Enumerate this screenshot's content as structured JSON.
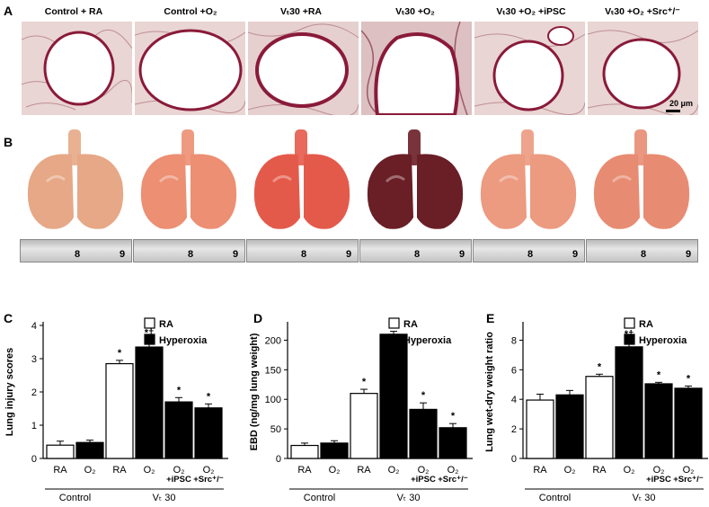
{
  "figure": {
    "panel_labels": [
      "A",
      "B",
      "C",
      "D",
      "E"
    ],
    "column_titles": [
      "Control + RA",
      "Control +O₂",
      "Vₜ30 +RA",
      "Vₜ30  +O₂",
      "Vₜ30  +O₂ +iPSC",
      "Vₜ30  +O₂ +Src⁺/⁻"
    ],
    "scale_bar_label": "20 μm",
    "ruler_numbers": [
      "8",
      "9"
    ],
    "colors": {
      "tissue": "#c9a4a4",
      "wall": "#8a1a3a",
      "rule_bg": "#d2d2d2",
      "bar_black": "#000000",
      "bar_white": "#ffffff"
    },
    "lung_colors": [
      "#e6a886",
      "#ec8f73",
      "#e45a4a",
      "#6a1e26",
      "#ec9a80",
      "#e78c72"
    ]
  },
  "chart_data": [
    {
      "type": "bar",
      "panel": "C",
      "ylabel": "Lung injury scores",
      "ylim": [
        0,
        4
      ],
      "yticks": [
        "0",
        "1",
        "2",
        "3",
        "4"
      ],
      "categories": [
        "RA",
        "O₂",
        "RA",
        "O₂",
        "O₂\n+iPSC",
        "O₂\n+Src⁺/⁻"
      ],
      "values": [
        0.4,
        0.48,
        2.85,
        3.35,
        1.7,
        1.52
      ],
      "errors": [
        0.12,
        0.07,
        0.1,
        0.2,
        0.13,
        0.12
      ],
      "fills": [
        "white",
        "black",
        "white",
        "black",
        "black",
        "black"
      ],
      "annotations": [
        "",
        "",
        "*",
        "*†",
        "*",
        "*"
      ],
      "legend": [
        {
          "label": "RA",
          "fill": "white"
        },
        {
          "label": "Hyperoxia",
          "fill": "black"
        }
      ],
      "groups": [
        {
          "label": "Control",
          "span": [
            0,
            1
          ]
        },
        {
          "label": "Vₜ 30",
          "span": [
            2,
            5
          ]
        }
      ]
    },
    {
      "type": "bar",
      "panel": "D",
      "ylabel": "EBD (ng/mg lung weight)",
      "ylim": [
        0,
        225
      ],
      "yticks": [
        "0",
        "50",
        "100",
        "150",
        "200"
      ],
      "categories": [
        "RA",
        "O₂",
        "RA",
        "O₂",
        "O₂\n+iPSC",
        "O₂\n+Src⁺/⁻"
      ],
      "values": [
        22,
        26,
        110,
        210,
        83,
        52
      ],
      "errors": [
        4,
        4,
        7,
        5,
        11,
        7
      ],
      "fills": [
        "white",
        "black",
        "white",
        "black",
        "black",
        "black"
      ],
      "annotations": [
        "",
        "",
        "*",
        "*†",
        "*",
        "*"
      ],
      "legend": [
        {
          "label": "RA",
          "fill": "white"
        },
        {
          "label": "Hyperoxia",
          "fill": "black"
        }
      ],
      "groups": [
        {
          "label": "Control",
          "span": [
            0,
            1
          ]
        },
        {
          "label": "Vₜ 30",
          "span": [
            2,
            5
          ]
        }
      ]
    },
    {
      "type": "bar",
      "panel": "E",
      "ylabel": "Lung wet-dry weight ratio",
      "ylim": [
        0,
        9
      ],
      "yticks": [
        "0",
        "2",
        "4",
        "6",
        "8"
      ],
      "categories": [
        "RA",
        "O₂",
        "RA",
        "O₂",
        "O₂\n+iPSC",
        "O₂\n+Src⁺/⁻"
      ],
      "values": [
        3.95,
        4.3,
        5.55,
        7.55,
        5.05,
        4.75
      ],
      "errors": [
        0.4,
        0.3,
        0.15,
        0.35,
        0.1,
        0.15
      ],
      "fills": [
        "white",
        "black",
        "white",
        "black",
        "black",
        "black"
      ],
      "annotations": [
        "",
        "",
        "*",
        "*†",
        "*",
        "*"
      ],
      "legend": [
        {
          "label": "RA",
          "fill": "white"
        },
        {
          "label": "Hyperoxia",
          "fill": "black"
        }
      ],
      "groups": [
        {
          "label": "Control",
          "span": [
            0,
            1
          ]
        },
        {
          "label": "Vₜ 30",
          "span": [
            2,
            5
          ]
        }
      ]
    }
  ]
}
